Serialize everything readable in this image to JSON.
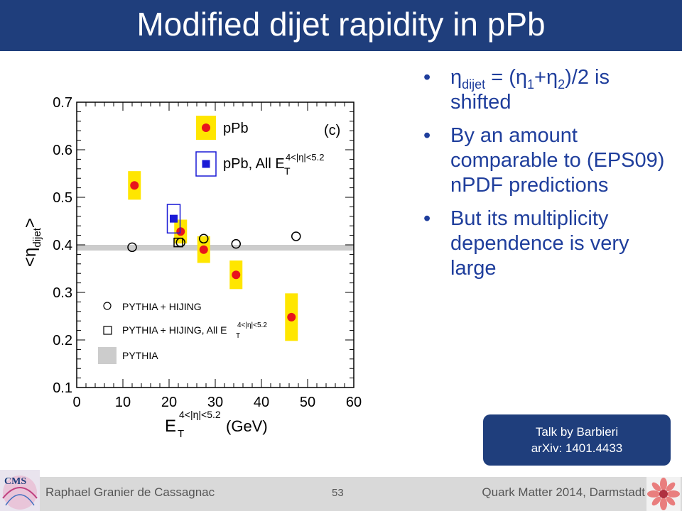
{
  "title": "Modified dijet rapidity in pPb",
  "bullets": {
    "b1_pre": "η",
    "b1_sub": "dijet",
    "b1_mid": " = (η",
    "b1_sub1": "1",
    "b1_plus": "+η",
    "b1_sub2": "2",
    "b1_post": ")/2 is shifted",
    "b2": "By an amount comparable to (EPS09) nPDF predictions",
    "b3": "But its multiplicity dependence is very large",
    "marker": "•"
  },
  "talk_box": {
    "line1": "Talk by Barbieri",
    "line2": "arXiv: 1401.4433"
  },
  "footer": {
    "author": "Raphael Granier de Cassagnac",
    "page": "53",
    "conference": "Quark Matter 2014, Darmstadt"
  },
  "logos": {
    "left": "CMS"
  },
  "colors": {
    "title_bar": "#1f3e7c",
    "bullet_text": "#1f3e9c",
    "pPb_marker": "#e8141c",
    "pPb_box": "#ffe600",
    "allET_marker": "#1a1ad6",
    "pythia_band": "#cccccc"
  },
  "chart_data": {
    "type": "scatter",
    "panel_label": "(c)",
    "xlabel": {
      "main": "E",
      "sub": "T",
      "sup": "4<|η|<5.2",
      "unit": "(GeV)"
    },
    "ylabel": {
      "pre": "<η",
      "sub": "dijet",
      "post": ">"
    },
    "xlim": [
      0,
      60
    ],
    "ylim": [
      0.1,
      0.7
    ],
    "xticks": [
      0,
      10,
      20,
      30,
      40,
      50,
      60
    ],
    "yticks": [
      0.1,
      0.2,
      0.3,
      0.4,
      0.5,
      0.6,
      0.7
    ],
    "series": [
      {
        "name": "pPb",
        "marker": "filled-circle",
        "x": [
          12.5,
          22.5,
          27.5,
          34.5,
          46.5
        ],
        "y": [
          0.525,
          0.428,
          0.39,
          0.337,
          0.248
        ],
        "syst": [
          0.03,
          0.025,
          0.028,
          0.03,
          0.05
        ]
      },
      {
        "name": "pPb, All E",
        "name_sub": "T",
        "name_sup": "4<|η|<5.2",
        "marker": "filled-square",
        "x": [
          21
        ],
        "y": [
          0.455
        ],
        "syst": [
          0.03
        ]
      },
      {
        "name": "PYTHIA + HIJING",
        "marker": "open-circle",
        "x": [
          12,
          22.5,
          27.5,
          34.5,
          47.5
        ],
        "y": [
          0.395,
          0.405,
          0.413,
          0.402,
          0.418
        ]
      },
      {
        "name": "PYTHIA + HIJING, All E",
        "name_sub": "T",
        "name_sup": "4<|η|<5.2",
        "marker": "open-square",
        "x": [
          22
        ],
        "y": [
          0.405
        ]
      },
      {
        "name": "PYTHIA",
        "marker": "band",
        "y": 0.394,
        "halfwidth": 0.006
      }
    ]
  }
}
